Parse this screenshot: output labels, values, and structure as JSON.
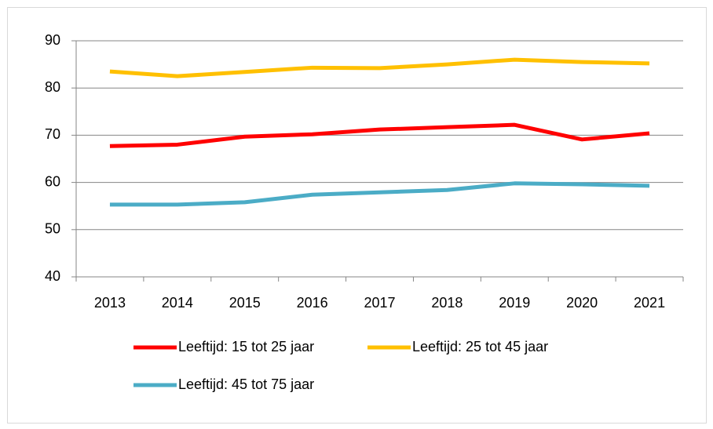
{
  "chart_data": {
    "type": "line",
    "categories": [
      "2013",
      "2014",
      "2015",
      "2016",
      "2017",
      "2018",
      "2019",
      "2020",
      "2021"
    ],
    "series": [
      {
        "name": "Leeftijd: 15 tot 25 jaar",
        "color": "#ff0000",
        "values": [
          67.7,
          68.0,
          69.7,
          70.2,
          71.2,
          71.7,
          72.2,
          69.1,
          70.4
        ]
      },
      {
        "name": "Leeftijd: 25 tot 45 jaar",
        "color": "#ffc000",
        "values": [
          83.5,
          82.5,
          83.4,
          84.3,
          84.2,
          85.0,
          86.0,
          85.5,
          85.2
        ]
      },
      {
        "name": "Leeftijd: 45 tot 75 jaar",
        "color": "#4bacc6",
        "values": [
          55.3,
          55.3,
          55.8,
          57.4,
          57.9,
          58.4,
          59.8,
          59.6,
          59.3
        ]
      }
    ],
    "ylim": [
      40,
      90
    ],
    "yticks": [
      40,
      50,
      60,
      70,
      80,
      90
    ],
    "grid": true,
    "legend": "bottom"
  }
}
